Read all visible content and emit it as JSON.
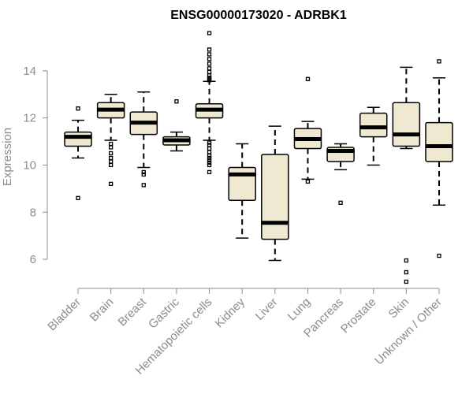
{
  "chart_data": {
    "type": "boxplot",
    "title": "ENSG00000173020 - ADRBK1",
    "xlabel": "",
    "ylabel": "Expression",
    "ylim": [
      5.4,
      15.6
    ],
    "yticks": [
      6,
      8,
      10,
      12,
      14
    ],
    "grid": false,
    "colors": {
      "box_fill": "#efe9d2",
      "box_stroke": "#000000",
      "axis": "#8c8c8c"
    },
    "categories": [
      "Bladder",
      "Brain",
      "Breast",
      "Gastric",
      "Hematopoietic cells",
      "Kidney",
      "Liver",
      "Lung",
      "Pancreas",
      "Prostate",
      "Skin",
      "Unknown / Other"
    ],
    "boxes": [
      {
        "name": "Bladder",
        "whislo": 10.3,
        "q1": 10.8,
        "med": 11.2,
        "q3": 11.4,
        "whishi": 11.9,
        "fliers": [
          12.4,
          8.6
        ]
      },
      {
        "name": "Brain",
        "whislo": 11.05,
        "q1": 12.0,
        "med": 12.35,
        "q3": 12.65,
        "whishi": 13.0,
        "fliers": [
          10.9,
          10.75,
          10.5,
          10.3,
          10.15,
          10.0,
          9.2
        ]
      },
      {
        "name": "Breast",
        "whislo": 9.9,
        "q1": 11.3,
        "med": 11.8,
        "q3": 12.25,
        "whishi": 13.1,
        "fliers": [
          9.7,
          9.6,
          9.15
        ]
      },
      {
        "name": "Gastric",
        "whislo": 10.6,
        "q1": 10.85,
        "med": 11.05,
        "q3": 11.2,
        "whishi": 11.4,
        "fliers": [
          12.7
        ]
      },
      {
        "name": "Hematopoietic cells",
        "whislo": 11.05,
        "q1": 12.0,
        "med": 12.35,
        "q3": 12.6,
        "whishi": 13.55,
        "fliers": [
          15.6,
          14.9,
          14.7,
          14.5,
          14.3,
          14.1,
          13.95,
          13.8,
          13.7,
          13.6,
          13.65,
          10.95,
          10.85,
          10.7,
          10.55,
          10.4,
          10.3,
          10.2,
          10.1,
          10.0,
          9.7
        ]
      },
      {
        "name": "Kidney",
        "whislo": 6.9,
        "q1": 8.5,
        "med": 9.6,
        "q3": 9.9,
        "whishi": 10.9,
        "fliers": []
      },
      {
        "name": "Liver",
        "whislo": 5.95,
        "q1": 6.85,
        "med": 7.55,
        "q3": 10.45,
        "whishi": 11.65,
        "fliers": []
      },
      {
        "name": "Lung",
        "whislo": 9.4,
        "q1": 10.7,
        "med": 11.1,
        "q3": 11.55,
        "whishi": 11.85,
        "fliers": [
          13.65,
          9.3
        ]
      },
      {
        "name": "Pancreas",
        "whislo": 9.8,
        "q1": 10.15,
        "med": 10.6,
        "q3": 10.75,
        "whishi": 10.9,
        "fliers": [
          8.4
        ]
      },
      {
        "name": "Prostate",
        "whislo": 10.0,
        "q1": 11.2,
        "med": 11.6,
        "q3": 12.2,
        "whishi": 12.45,
        "fliers": []
      },
      {
        "name": "Skin",
        "whislo": 10.7,
        "q1": 10.8,
        "med": 11.3,
        "q3": 12.65,
        "whishi": 14.15,
        "fliers": [
          5.95,
          5.45,
          5.05
        ]
      },
      {
        "name": "Unknown / Other",
        "whislo": 8.3,
        "q1": 10.15,
        "med": 10.8,
        "q3": 11.8,
        "whishi": 13.7,
        "fliers": [
          14.4,
          6.15
        ]
      }
    ]
  }
}
